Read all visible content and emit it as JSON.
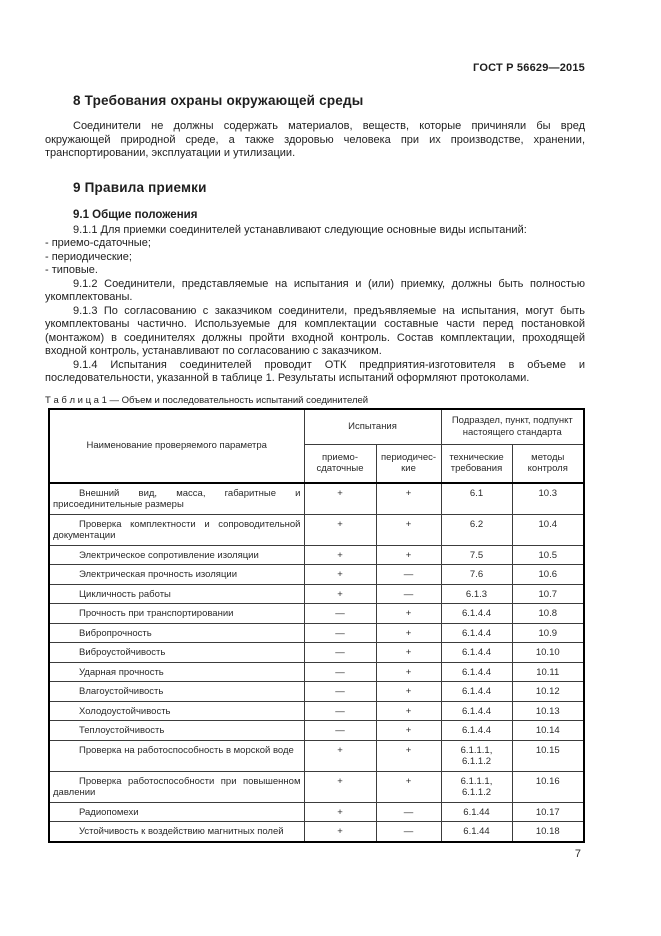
{
  "header": {
    "title": "ГОСТ Р 56629—2015"
  },
  "footer": {
    "page_number": "7"
  },
  "section8": {
    "title": "8  Требования охраны окружающей среды",
    "paragraph": "Соединители не должны содержать материалов, веществ, которые причиняли бы вред окружающей природной среде, а также здоровью человека  при их производстве, хранении, транспортировании, эксплуатации и утилизации."
  },
  "section9": {
    "title": "9  Правила приемки",
    "subsection_title": "9.1  Общие положения",
    "p911": "9.1.1  Для приемки соединителей устанавливают следующие основные виды испытаний:",
    "bullets": [
      "-  приемо-сдаточные;",
      "-  периодические;",
      "-  типовые."
    ],
    "p912": "9.1.2  Соединители,  представляемые на испытания и (или) приемку,  должны быть полностью укомплектованы.",
    "p913": "9.1.3  По согласованию с заказчиком соединители, предъявляемые на испытания, могут быть укомплектованы частично. Используемые для комплектации составные части перед постановкой (монтажом) в соединителях должны пройти входной контроль. Состав комплектации, проходящей входной контроль, устанавливают по согласованию с заказчиком.",
    "p914": "9.1.4  Испытания соединителей проводит ОТК предприятия-изготовителя в объеме и последовательности, указанной в таблице 1. Результаты испытаний оформляют протоколами."
  },
  "table": {
    "caption": "Т а б л и ц а  1 — Объем и последовательность испытаний соединителей",
    "headers": {
      "param": "Наименование проверяемого параметра",
      "tests_group": "Испытания",
      "standard_group": "Подраздел, пункт, подпункт настоящего стандарта",
      "acceptance": "приемо-\nсдаточные",
      "periodic": "периодичес-\nкие",
      "tech": "технические\nтребования",
      "methods": "методы\nконтроля"
    },
    "rows": [
      {
        "param": "Внешний вид, масса, габаритные и присоединительные размеры",
        "acceptance": "+",
        "periodic": "+",
        "tech": "6.1",
        "methods": "10.3"
      },
      {
        "param": "Проверка комплектности и сопроводительной документации",
        "acceptance": "+",
        "periodic": "+",
        "tech": "6.2",
        "methods": "10.4"
      },
      {
        "param": "Электрическое сопротивление изоляции",
        "acceptance": "+",
        "periodic": "+",
        "tech": "7.5",
        "methods": "10.5"
      },
      {
        "param": "Электрическая прочность изоляции",
        "acceptance": "+",
        "periodic": "—",
        "tech": "7.6",
        "methods": "10.6"
      },
      {
        "param": "Цикличность работы",
        "acceptance": "+",
        "periodic": "—",
        "tech": "6.1.3",
        "methods": "10.7"
      },
      {
        "param": "Прочность при транспортировании",
        "acceptance": "—",
        "periodic": "+",
        "tech": "6.1.4.4",
        "methods": "10.8"
      },
      {
        "param": "Вибропрочность",
        "acceptance": "—",
        "periodic": "+",
        "tech": "6.1.4.4",
        "methods": "10.9"
      },
      {
        "param": "Виброустойчивость",
        "acceptance": "—",
        "periodic": "+",
        "tech": "6.1.4.4",
        "methods": "10.10"
      },
      {
        "param": "Ударная прочность",
        "acceptance": "—",
        "periodic": "+",
        "tech": "6.1.4.4",
        "methods": "10.11"
      },
      {
        "param": "Влагоустойчивость",
        "acceptance": "—",
        "periodic": "+",
        "tech": "6.1.4.4",
        "methods": "10.12"
      },
      {
        "param": "Холодоустойчивость",
        "acceptance": "—",
        "periodic": "+",
        "tech": "6.1.4.4",
        "methods": "10.13"
      },
      {
        "param": "Теплоустойчивость",
        "acceptance": "—",
        "periodic": "+",
        "tech": "6.1.4.4",
        "methods": "10.14"
      },
      {
        "param": "Проверка на работоспособность в морской воде",
        "acceptance": "+",
        "periodic": "+",
        "tech": "6.1.1.1,\n6.1.1.2",
        "methods": "10.15"
      },
      {
        "param": "Проверка работоспособности при повышенном давлении",
        "acceptance": "+",
        "periodic": "+",
        "tech": "6.1.1.1,\n6.1.1.2",
        "methods": "10.16"
      },
      {
        "param": "Радиопомехи",
        "acceptance": "+",
        "periodic": "—",
        "tech": "6.1.44",
        "methods": "10.17"
      },
      {
        "param": "Устойчивость к воздействию магнитных полей",
        "acceptance": "+",
        "periodic": "—",
        "tech": "6.1.44",
        "methods": "10.18"
      }
    ]
  }
}
